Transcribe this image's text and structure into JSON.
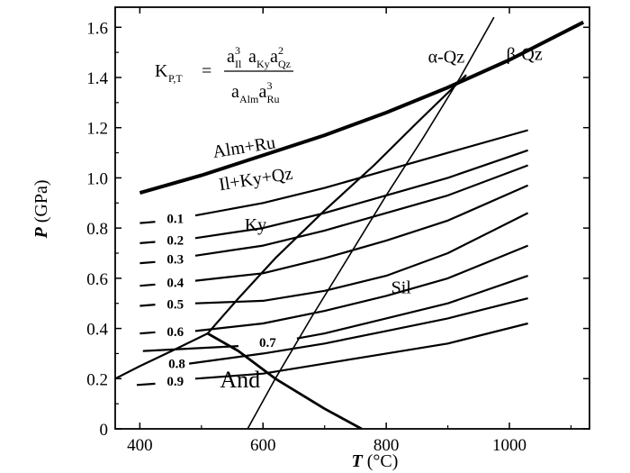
{
  "chart_data": {
    "type": "line",
    "title": "",
    "xlabel": {
      "symbol": "T",
      "unit": " (°C)"
    },
    "ylabel": {
      "symbol": "P",
      "unit": " (GPa)"
    },
    "xlim": [
      360,
      1130
    ],
    "ylim": [
      0,
      1.68
    ],
    "xticks": [
      400,
      600,
      800,
      1000
    ],
    "xtick_labels": [
      "400",
      "600",
      "800",
      "1000"
    ],
    "yticks": [
      0,
      0.2,
      0.4,
      0.6,
      0.8,
      1.0,
      1.2,
      1.4,
      1.6
    ],
    "ytick_labels": [
      "0",
      "0.2",
      "0.4",
      "0.6",
      "0.8",
      "1.0",
      "1.2",
      "1.4",
      "1.6"
    ],
    "grid": false,
    "legend": "none",
    "equation": {
      "lhs": "K",
      "lhs_sub": "P,T",
      "equals": "=",
      "numerator": [
        {
          "base": "a",
          "sub": "Il",
          "sup": "3"
        },
        {
          "base": "a",
          "sub": "Ky",
          "sup": ""
        },
        {
          "base": "a",
          "sub": "Qz",
          "sup": "2"
        }
      ],
      "denominator": [
        {
          "base": "a",
          "sub": "Alm",
          "sup": ""
        },
        {
          "base": "a",
          "sub": "Ru",
          "sup": "3"
        }
      ]
    },
    "phase_labels": [
      {
        "text": "Alm+Ru",
        "x": 520,
        "y": 1.08,
        "rotate": -9,
        "cls": "region-label"
      },
      {
        "text": "Il+Ky+Qz",
        "x": 530,
        "y": 0.95,
        "rotate": -9,
        "cls": "region-label"
      },
      {
        "text": "Ky",
        "x": 570,
        "y": 0.79,
        "rotate": 0,
        "cls": "region-label"
      },
      {
        "text": "Sil",
        "x": 808,
        "y": 0.54,
        "rotate": 0,
        "cls": "region-label"
      },
      {
        "text": "And",
        "x": 530,
        "y": 0.165,
        "rotate": 0,
        "cls": "and-label"
      },
      {
        "text": "α-Qz",
        "x": 868,
        "y": 1.46,
        "rotate": 0,
        "cls": "region-label"
      },
      {
        "text": "β-Qz",
        "x": 995,
        "y": 1.47,
        "rotate": 0,
        "cls": "region-label"
      }
    ],
    "series": [
      {
        "role": "reaction",
        "label": "Alm+Ru = Il+Ky+Qz",
        "width": 4,
        "x": [
          400,
          500,
          600,
          700,
          800,
          900,
          1000,
          1120
        ],
        "y": [
          0.94,
          1.01,
          1.09,
          1.17,
          1.26,
          1.36,
          1.47,
          1.62
        ]
      },
      {
        "role": "isopleth",
        "label": "0.1",
        "width": 2.2,
        "x": [
          400,
          425
        ],
        "y": [
          0.82,
          0.825
        ],
        "x2": [
          490,
          600,
          700,
          800,
          900,
          1030
        ],
        "y2": [
          0.85,
          0.9,
          0.96,
          1.03,
          1.1,
          1.19
        ]
      },
      {
        "role": "isopleth",
        "label": "0.2",
        "width": 2.2,
        "x": [
          400,
          425
        ],
        "y": [
          0.74,
          0.745
        ],
        "x2": [
          490,
          600,
          700,
          800,
          900,
          1030
        ],
        "y2": [
          0.76,
          0.8,
          0.86,
          0.93,
          1.0,
          1.11
        ]
      },
      {
        "role": "isopleth",
        "label": "0.3",
        "width": 2.2,
        "x": [
          400,
          425
        ],
        "y": [
          0.66,
          0.665
        ],
        "x2": [
          490,
          600,
          700,
          800,
          900,
          1030
        ],
        "y2": [
          0.69,
          0.73,
          0.79,
          0.86,
          0.93,
          1.05
        ]
      },
      {
        "role": "isopleth",
        "label": "0.4",
        "width": 2.2,
        "x": [
          400,
          425
        ],
        "y": [
          0.57,
          0.575
        ],
        "x2": [
          490,
          600,
          700,
          800,
          900,
          1030
        ],
        "y2": [
          0.59,
          0.62,
          0.68,
          0.75,
          0.83,
          0.97
        ]
      },
      {
        "role": "isopleth",
        "label": "0.5",
        "width": 2.2,
        "x": [
          400,
          425
        ],
        "y": [
          0.49,
          0.495
        ],
        "x2": [
          490,
          600,
          700,
          800,
          900,
          1030
        ],
        "y2": [
          0.5,
          0.51,
          0.55,
          0.61,
          0.7,
          0.86
        ]
      },
      {
        "role": "isopleth",
        "label": "0.6",
        "width": 2.2,
        "x": [
          400,
          425
        ],
        "y": [
          0.38,
          0.385
        ],
        "x2": [
          490,
          600,
          700,
          800,
          900,
          1030
        ],
        "y2": [
          0.39,
          0.42,
          0.47,
          0.53,
          0.6,
          0.73
        ]
      },
      {
        "role": "isopleth",
        "label": "0.7",
        "width": 2.2,
        "x": [
          405,
          560
        ],
        "y": [
          0.31,
          0.33
        ],
        "x2": [
          655,
          700,
          800,
          900,
          1030
        ],
        "y2": [
          0.36,
          0.38,
          0.44,
          0.5,
          0.61
        ]
      },
      {
        "role": "isopleth",
        "label": "0.8",
        "width": 2.2,
        "x": [
          480,
          540,
          600,
          700,
          800,
          900,
          1030
        ],
        "y": [
          0.26,
          0.28,
          0.3,
          0.34,
          0.39,
          0.44,
          0.52
        ]
      },
      {
        "role": "isopleth",
        "label": "0.9",
        "width": 2.2,
        "x": [
          395,
          425
        ],
        "y": [
          0.175,
          0.18
        ],
        "x2": [
          490,
          600,
          700,
          800,
          900,
          1030
        ],
        "y2": [
          0.2,
          0.22,
          0.26,
          0.3,
          0.34,
          0.42
        ]
      },
      {
        "role": "aluminosilicate",
        "label": "Ky-Sil",
        "width": 2.2,
        "x": [
          510,
          560,
          620,
          700,
          780,
          850,
          930
        ],
        "y": [
          0.38,
          0.52,
          0.68,
          0.87,
          1.05,
          1.22,
          1.41
        ]
      },
      {
        "role": "aluminosilicate",
        "label": "And-Ky",
        "width": 2.2,
        "x": [
          360,
          400,
          460,
          510
        ],
        "y": [
          0.2,
          0.25,
          0.32,
          0.38
        ]
      },
      {
        "role": "aluminosilicate",
        "label": "And-Sil",
        "width": 2.8,
        "x": [
          510,
          560,
          620,
          700,
          760
        ],
        "y": [
          0.38,
          0.31,
          0.2,
          0.08,
          0.0
        ]
      },
      {
        "role": "quartz",
        "label": "α-Qz = β-Qz",
        "width": 1.6,
        "x": [
          575,
          620,
          680,
          740,
          800,
          860,
          920,
          975
        ],
        "y": [
          0.0,
          0.2,
          0.45,
          0.69,
          0.93,
          1.16,
          1.4,
          1.64
        ]
      }
    ]
  }
}
